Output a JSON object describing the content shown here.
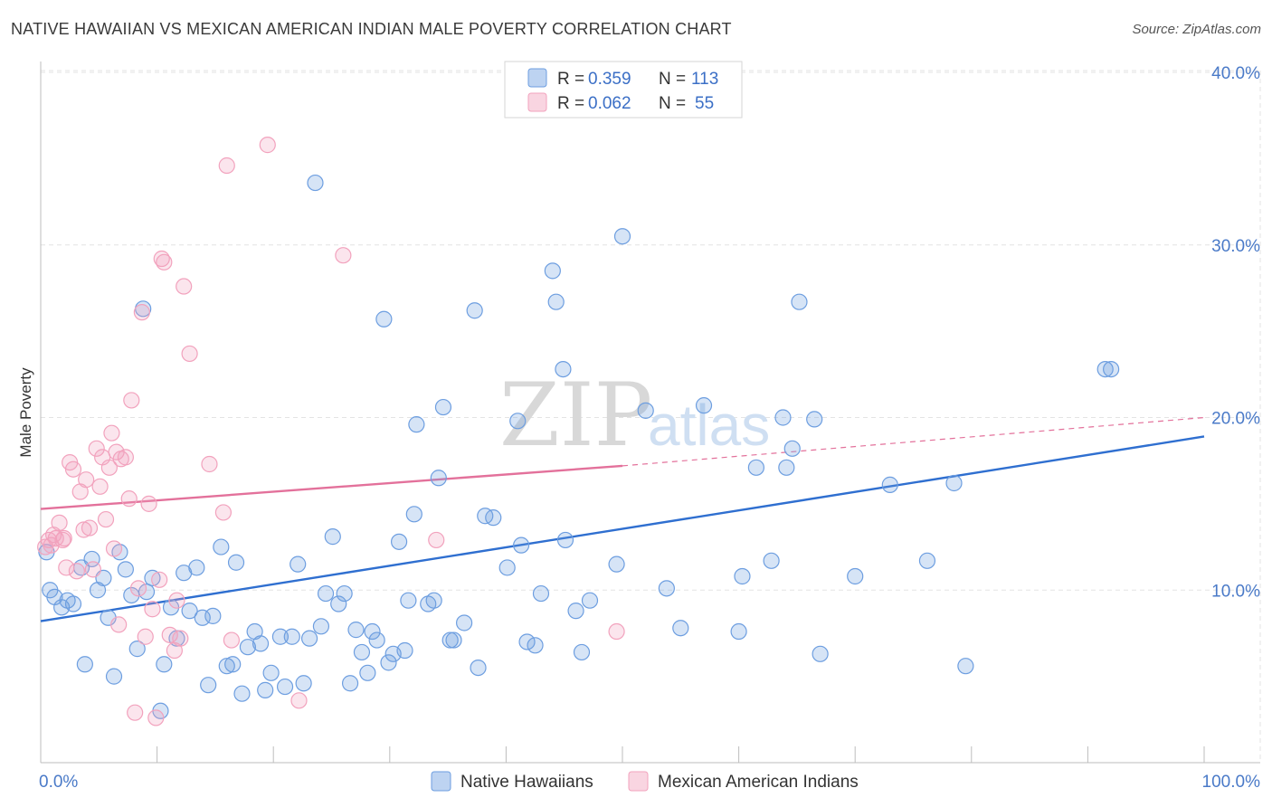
{
  "header": {
    "title": "NATIVE HAWAIIAN VS MEXICAN AMERICAN INDIAN MALE POVERTY CORRELATION CHART",
    "source": "Source: ZipAtlas.com"
  },
  "watermark": {
    "zip": "ZIP",
    "atlas": "atlas"
  },
  "legend": {
    "rows": [
      {
        "r_label": "R =",
        "r_value": "0.359",
        "n_label": "N =",
        "n_value": "113"
      },
      {
        "r_label": "R =",
        "r_value": "0.062",
        "n_label": "N =",
        "n_value": "55"
      }
    ]
  },
  "chart_data": {
    "type": "scatter",
    "title": "NATIVE HAWAIIAN VS MEXICAN AMERICAN INDIAN MALE POVERTY CORRELATION CHART",
    "xlabel": "",
    "ylabel": "Male Poverty",
    "xlim": [
      0,
      100
    ],
    "ylim": [
      0,
      40
    ],
    "x_tick_labels": [
      "0.0%",
      "100.0%"
    ],
    "y_ticks": [
      10,
      20,
      30,
      40
    ],
    "y_tick_labels": [
      "10.0%",
      "20.0%",
      "30.0%",
      "40.0%"
    ],
    "grid": true,
    "legend_position": "bottom",
    "series": [
      {
        "name": "Native Hawaiians",
        "color": "#6d9ee0",
        "line_color": "#2f6fd0",
        "r": 0.359,
        "n": 113,
        "trend": {
          "x": [
            0,
            100
          ],
          "y": [
            8.2,
            18.9
          ],
          "dashed_from": null
        },
        "points": [
          [
            0.5,
            12.2
          ],
          [
            0.8,
            10.0
          ],
          [
            1.2,
            9.6
          ],
          [
            1.8,
            9.0
          ],
          [
            2.3,
            9.4
          ],
          [
            2.8,
            9.2
          ],
          [
            3.5,
            11.3
          ],
          [
            3.8,
            5.7
          ],
          [
            4.4,
            11.8
          ],
          [
            4.9,
            10.0
          ],
          [
            5.4,
            10.7
          ],
          [
            5.8,
            8.4
          ],
          [
            6.3,
            5.0
          ],
          [
            6.8,
            12.2
          ],
          [
            7.3,
            11.2
          ],
          [
            7.8,
            9.7
          ],
          [
            8.3,
            6.6
          ],
          [
            8.8,
            26.3
          ],
          [
            9.1,
            9.9
          ],
          [
            9.6,
            10.7
          ],
          [
            10.3,
            3.0
          ],
          [
            10.6,
            5.7
          ],
          [
            11.2,
            9.0
          ],
          [
            11.7,
            7.2
          ],
          [
            12.3,
            11.0
          ],
          [
            12.8,
            8.8
          ],
          [
            13.4,
            11.3
          ],
          [
            13.9,
            8.4
          ],
          [
            14.4,
            4.5
          ],
          [
            14.8,
            8.5
          ],
          [
            15.5,
            12.5
          ],
          [
            16.0,
            5.6
          ],
          [
            16.5,
            5.7
          ],
          [
            16.8,
            11.6
          ],
          [
            17.3,
            4.0
          ],
          [
            17.8,
            6.7
          ],
          [
            18.4,
            7.6
          ],
          [
            18.9,
            6.9
          ],
          [
            19.3,
            4.2
          ],
          [
            19.8,
            5.2
          ],
          [
            20.6,
            7.3
          ],
          [
            21.0,
            4.4
          ],
          [
            21.6,
            7.3
          ],
          [
            22.1,
            11.5
          ],
          [
            22.6,
            4.6
          ],
          [
            23.1,
            7.2
          ],
          [
            23.6,
            33.6
          ],
          [
            24.1,
            7.9
          ],
          [
            24.5,
            9.8
          ],
          [
            25.1,
            13.1
          ],
          [
            25.6,
            9.2
          ],
          [
            26.1,
            9.8
          ],
          [
            26.6,
            4.6
          ],
          [
            27.1,
            7.7
          ],
          [
            27.6,
            6.4
          ],
          [
            28.1,
            5.2
          ],
          [
            28.5,
            7.6
          ],
          [
            28.9,
            7.1
          ],
          [
            29.5,
            25.7
          ],
          [
            29.9,
            5.8
          ],
          [
            30.3,
            6.3
          ],
          [
            30.8,
            12.8
          ],
          [
            31.3,
            6.5
          ],
          [
            31.6,
            9.4
          ],
          [
            32.1,
            14.4
          ],
          [
            32.3,
            19.6
          ],
          [
            33.3,
            9.2
          ],
          [
            33.8,
            9.4
          ],
          [
            34.2,
            16.5
          ],
          [
            34.6,
            20.6
          ],
          [
            35.2,
            7.1
          ],
          [
            35.5,
            7.1
          ],
          [
            36.4,
            8.1
          ],
          [
            37.3,
            26.2
          ],
          [
            37.6,
            5.5
          ],
          [
            38.2,
            14.3
          ],
          [
            38.9,
            14.2
          ],
          [
            40.1,
            11.3
          ],
          [
            41.0,
            19.8
          ],
          [
            41.3,
            12.6
          ],
          [
            41.8,
            7.0
          ],
          [
            42.5,
            6.8
          ],
          [
            43.0,
            9.8
          ],
          [
            44.0,
            28.5
          ],
          [
            44.3,
            26.7
          ],
          [
            44.9,
            22.8
          ],
          [
            45.1,
            12.9
          ],
          [
            46.0,
            8.8
          ],
          [
            46.5,
            6.4
          ],
          [
            47.2,
            9.4
          ],
          [
            50.0,
            30.5
          ],
          [
            49.5,
            11.5
          ],
          [
            52.0,
            20.4
          ],
          [
            53.8,
            10.1
          ],
          [
            55.0,
            7.8
          ],
          [
            57.0,
            20.7
          ],
          [
            60.0,
            7.6
          ],
          [
            60.3,
            10.8
          ],
          [
            61.5,
            17.1
          ],
          [
            62.8,
            11.7
          ],
          [
            63.8,
            20.0
          ],
          [
            64.1,
            17.1
          ],
          [
            64.6,
            18.2
          ],
          [
            65.2,
            26.7
          ],
          [
            66.5,
            19.9
          ],
          [
            67.0,
            6.3
          ],
          [
            70.0,
            10.8
          ],
          [
            73.0,
            16.1
          ],
          [
            76.2,
            11.7
          ],
          [
            78.5,
            16.2
          ],
          [
            79.5,
            5.6
          ],
          [
            92.0,
            22.8
          ],
          [
            91.5,
            22.8
          ]
        ]
      },
      {
        "name": "Mexican American Indians",
        "color": "#f2a2bd",
        "line_color": "#e3719b",
        "r": 0.062,
        "n": 55,
        "trend": {
          "x": [
            0,
            50,
            100
          ],
          "y": [
            14.7,
            17.2,
            20.0
          ],
          "dashed_from": 50
        },
        "points": [
          [
            0.4,
            12.5
          ],
          [
            0.7,
            12.9
          ],
          [
            1.1,
            13.2
          ],
          [
            1.6,
            13.9
          ],
          [
            1.9,
            12.9
          ],
          [
            2.2,
            11.3
          ],
          [
            2.5,
            17.4
          ],
          [
            2.8,
            17.0
          ],
          [
            3.1,
            11.1
          ],
          [
            3.4,
            15.7
          ],
          [
            3.7,
            13.5
          ],
          [
            3.9,
            16.4
          ],
          [
            4.2,
            13.6
          ],
          [
            4.5,
            11.2
          ],
          [
            4.8,
            18.2
          ],
          [
            5.1,
            16.0
          ],
          [
            5.3,
            17.7
          ],
          [
            5.6,
            14.1
          ],
          [
            5.9,
            17.1
          ],
          [
            6.1,
            19.1
          ],
          [
            6.3,
            12.4
          ],
          [
            6.5,
            18.0
          ],
          [
            6.7,
            8.0
          ],
          [
            6.9,
            17.6
          ],
          [
            7.3,
            17.7
          ],
          [
            7.6,
            15.3
          ],
          [
            7.8,
            21.0
          ],
          [
            8.1,
            2.9
          ],
          [
            8.4,
            10.1
          ],
          [
            8.7,
            26.1
          ],
          [
            9.0,
            7.3
          ],
          [
            9.3,
            15.0
          ],
          [
            9.6,
            8.9
          ],
          [
            9.9,
            2.6
          ],
          [
            10.2,
            10.6
          ],
          [
            10.4,
            29.2
          ],
          [
            10.6,
            29.0
          ],
          [
            11.1,
            7.4
          ],
          [
            11.5,
            6.5
          ],
          [
            11.7,
            9.4
          ],
          [
            12.0,
            7.2
          ],
          [
            12.3,
            27.6
          ],
          [
            12.8,
            23.7
          ],
          [
            14.5,
            17.3
          ],
          [
            15.7,
            14.5
          ],
          [
            16.0,
            34.6
          ],
          [
            16.4,
            7.1
          ],
          [
            19.5,
            35.8
          ],
          [
            22.2,
            3.6
          ],
          [
            26.0,
            29.4
          ],
          [
            34.0,
            12.9
          ],
          [
            49.5,
            7.6
          ],
          [
            0.9,
            12.6
          ],
          [
            1.3,
            13.0
          ],
          [
            2.0,
            13.0
          ]
        ]
      }
    ]
  }
}
